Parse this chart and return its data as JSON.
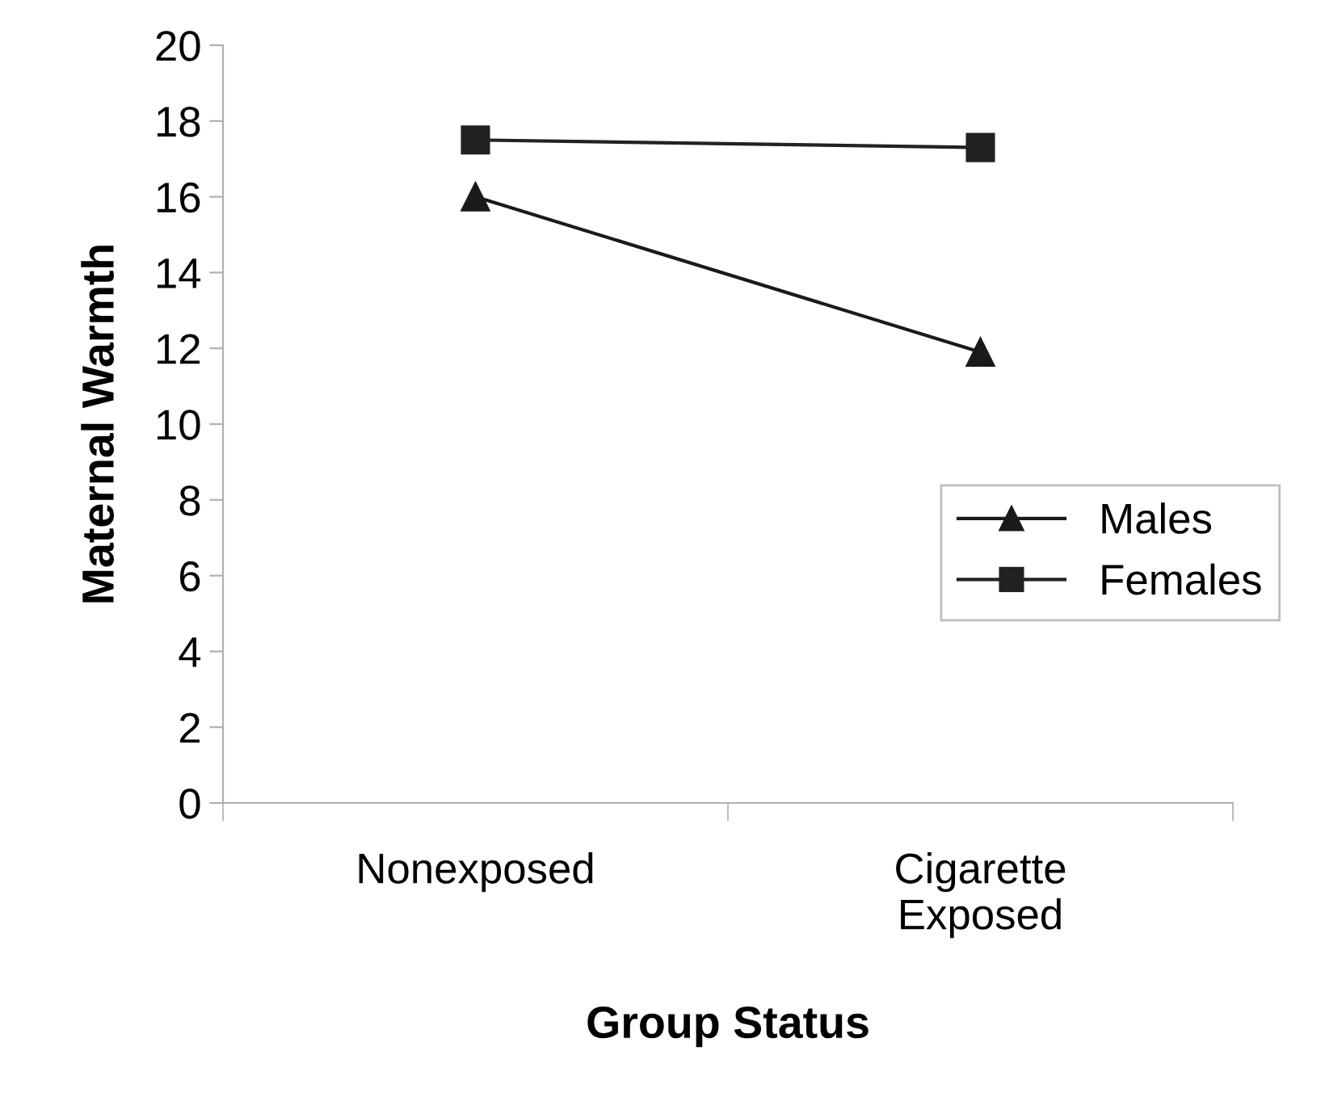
{
  "chart_data": {
    "type": "line",
    "xlabel": "Group Status",
    "ylabel": "Maternal Warmth",
    "categories": [
      "Nonexposed",
      "Cigarette\nExposed"
    ],
    "series": [
      {
        "name": "Males",
        "color": "#1a1a1a",
        "values": [
          16,
          11.9
        ],
        "marker": "triangle"
      },
      {
        "name": "Females",
        "color": "#222222",
        "values": [
          17.5,
          17.3
        ],
        "marker": "square"
      }
    ],
    "ylim": [
      0,
      20
    ],
    "yticks": [
      0,
      2,
      4,
      6,
      8,
      10,
      12,
      14,
      16,
      18,
      20
    ],
    "grid": false,
    "legend": "right",
    "line_style": "solid"
  }
}
